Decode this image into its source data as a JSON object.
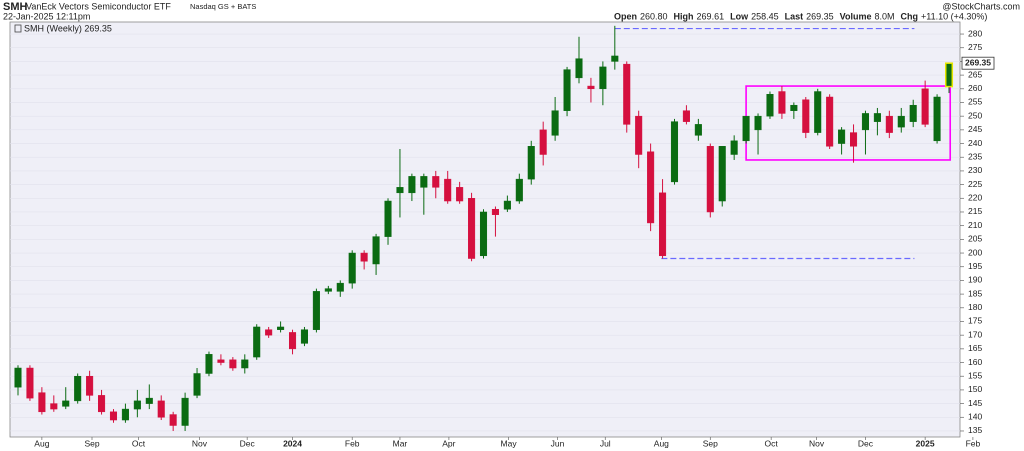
{
  "header": {
    "symbol": "SMH",
    "name": "VanEck Vectors Semiconductor ETF",
    "exchange": "Nasdaq GS + BATS",
    "timestamp": "22-Jan-2025 12:11pm",
    "source": "@StockCharts.com",
    "quote": [
      {
        "label": "Open",
        "value": "260.80"
      },
      {
        "label": "High",
        "value": "269.61"
      },
      {
        "label": "Low",
        "value": "258.45"
      },
      {
        "label": "Last",
        "value": "269.35"
      },
      {
        "label": "Volume",
        "value": "8.0M"
      },
      {
        "label": "Chg",
        "value": "+11.10 (+4.30%)"
      }
    ]
  },
  "chart_data": {
    "type": "candlestick",
    "legend": "SMH (Weekly) 269.35",
    "up_color": "#0b6b12",
    "down_color": "#d5103f",
    "grid": true,
    "open": [
      151,
      158,
      149,
      145,
      144,
      146,
      155,
      148,
      142,
      139,
      143,
      145,
      146,
      141,
      137,
      148,
      156,
      161,
      161,
      158,
      162,
      172,
      172,
      171,
      167,
      172,
      186,
      186,
      189,
      200,
      196,
      206,
      222,
      222,
      224,
      228,
      227,
      224,
      220,
      199,
      216,
      216,
      219,
      227,
      245,
      243,
      252,
      264,
      261,
      260,
      270,
      269,
      250,
      237,
      222,
      226,
      252,
      243,
      239,
      219,
      236,
      241,
      245,
      250,
      259,
      252,
      256,
      244,
      257,
      240,
      244,
      245,
      248,
      250,
      246,
      248,
      260,
      241,
      260.8
    ],
    "high": [
      159,
      159,
      151,
      148,
      151,
      156,
      157,
      150,
      143,
      145,
      150,
      152,
      148,
      142,
      149,
      158,
      164,
      163,
      162,
      163,
      174,
      173,
      175,
      172,
      173,
      187,
      188,
      190,
      201,
      201,
      207,
      220,
      238,
      229,
      229,
      230,
      230,
      226,
      222,
      216,
      217,
      221,
      229,
      241,
      248,
      257,
      268,
      279,
      264,
      270,
      283,
      270,
      252,
      240,
      227,
      249,
      254,
      249,
      240,
      239,
      243,
      250,
      251,
      259,
      261,
      255,
      257,
      260,
      258,
      246,
      247,
      252,
      253,
      252,
      253,
      256,
      263,
      258,
      269.61
    ],
    "low": [
      148,
      146,
      141,
      142,
      143,
      145,
      146,
      141,
      138,
      138,
      140,
      143,
      139,
      135,
      135,
      147,
      155,
      159,
      157,
      156,
      161,
      169,
      171,
      163,
      166,
      171,
      185,
      184,
      187,
      194,
      192,
      203,
      213,
      219,
      214,
      220,
      218,
      218,
      197,
      198,
      206,
      215,
      218,
      225,
      232,
      241,
      250,
      262,
      255,
      254,
      267,
      244,
      231,
      208,
      198,
      225,
      247,
      241,
      213,
      217,
      234,
      240,
      236,
      249,
      249,
      249,
      242,
      243,
      238,
      236,
      233,
      236,
      243,
      242,
      244,
      246,
      246,
      240,
      258.45
    ],
    "close": [
      158,
      147,
      142,
      143,
      146,
      155,
      148,
      142,
      139,
      143,
      146,
      147,
      140,
      137,
      147,
      156,
      163,
      160,
      158,
      161,
      173,
      170,
      173,
      165,
      172,
      186,
      187,
      189,
      200,
      197,
      206,
      219,
      224,
      228,
      228,
      224,
      219,
      219,
      198,
      215,
      214,
      219,
      227,
      239,
      236,
      252,
      267,
      271,
      260,
      268,
      272,
      247,
      236,
      211,
      199,
      248,
      248,
      247,
      215,
      239,
      241,
      250,
      250,
      258,
      251,
      254,
      244,
      259,
      239,
      245,
      239,
      251,
      251,
      244,
      250,
      254,
      247,
      257,
      269.35
    ],
    "xlim": [
      -0.67,
      78.92
    ],
    "xticks": [
      {
        "value": 2.0,
        "label": "Aug"
      },
      {
        "value": 6.2,
        "label": "Sep"
      },
      {
        "value": 10.1,
        "label": "Oct"
      },
      {
        "value": 15.2,
        "label": "Nov"
      },
      {
        "value": 19.2,
        "label": "Dec"
      },
      {
        "value": 23.0,
        "label": "2024"
      },
      {
        "value": 28.0,
        "label": "Feb"
      },
      {
        "value": 32.0,
        "label": "Mar"
      },
      {
        "value": 36.1,
        "label": "Apr"
      },
      {
        "value": 41.1,
        "label": "May"
      },
      {
        "value": 45.2,
        "label": "Jun"
      },
      {
        "value": 49.2,
        "label": "Jul"
      },
      {
        "value": 53.9,
        "label": "Aug"
      },
      {
        "value": 58.0,
        "label": "Sep"
      },
      {
        "value": 63.1,
        "label": "Oct"
      },
      {
        "value": 66.9,
        "label": "Nov"
      },
      {
        "value": 71.0,
        "label": "Dec"
      },
      {
        "value": 76.0,
        "label": "2025"
      },
      {
        "value": 80.0,
        "label": "Feb"
      }
    ],
    "ylim": [
      132.8,
      284.4
    ],
    "yticks": [
      135,
      140,
      145,
      150,
      155,
      160,
      165,
      170,
      175,
      180,
      185,
      190,
      195,
      200,
      205,
      210,
      215,
      220,
      225,
      230,
      235,
      240,
      245,
      250,
      255,
      260,
      265,
      270,
      275,
      280
    ],
    "hlines": [
      {
        "y": 282,
        "x": [
          50,
          75.1
        ],
        "color": "#6a6aff"
      },
      {
        "y": 198,
        "x": [
          53.9,
          75.1
        ],
        "color": "#6a6aff"
      }
    ],
    "box": {
      "y": [
        234,
        261
      ],
      "x": [
        61,
        78.1
      ],
      "color": "#ff00ff"
    }
  }
}
